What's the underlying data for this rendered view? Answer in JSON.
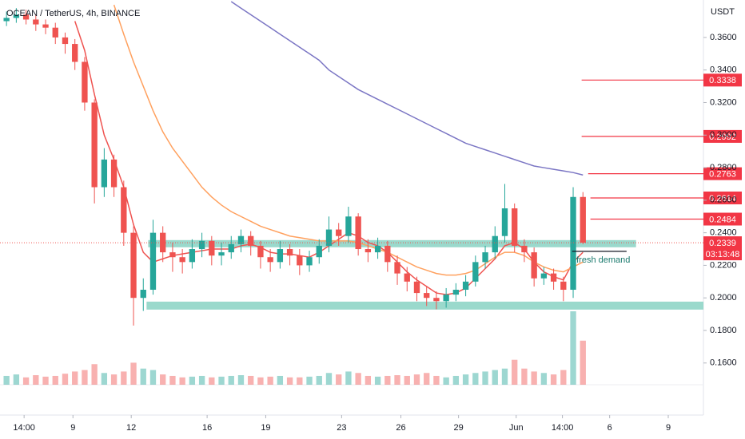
{
  "chart_data": {
    "type": "candlestick",
    "title": "OCEAN / TetherUS, 4h, BINANCE",
    "y_axis_label": "USDT",
    "up_color": "#26a69a",
    "down_color": "#ef5350",
    "xlim": [
      0,
      216
    ],
    "ylim": [
      0.129,
      0.383
    ],
    "xticks": [
      {
        "value": 7.4,
        "label": "14:00"
      },
      {
        "value": 22.4,
        "label": "9"
      },
      {
        "value": 40.3,
        "label": "12"
      },
      {
        "value": 63.6,
        "label": "16"
      },
      {
        "value": 81.6,
        "label": "19"
      },
      {
        "value": 104.9,
        "label": "23"
      },
      {
        "value": 123.1,
        "label": "26"
      },
      {
        "value": 140.8,
        "label": "29"
      },
      {
        "value": 158.5,
        "label": "Jun"
      },
      {
        "value": 172.7,
        "label": "14:00"
      },
      {
        "value": 187.2,
        "label": "6"
      },
      {
        "value": 205.2,
        "label": "9"
      }
    ],
    "yticks": [
      {
        "value": 0.36,
        "label": "0.3600"
      },
      {
        "value": 0.34,
        "label": "0.3400"
      },
      {
        "value": 0.32,
        "label": "0.3200"
      },
      {
        "value": 0.3,
        "label": "0.3000"
      },
      {
        "value": 0.28,
        "label": "0.2800"
      },
      {
        "value": 0.26,
        "label": "0.2600"
      },
      {
        "value": 0.24,
        "label": "0.2400"
      },
      {
        "value": 0.22,
        "label": "0.2200"
      },
      {
        "value": 0.2,
        "label": "0.2000"
      },
      {
        "value": 0.18,
        "label": "0.1800"
      },
      {
        "value": 0.16,
        "label": "0.1600"
      }
    ],
    "x": [
      2,
      5,
      8,
      11,
      14,
      17,
      20,
      23,
      26,
      29,
      32,
      35,
      38,
      41,
      44,
      47,
      50,
      53,
      56,
      59,
      62,
      65,
      68,
      71,
      74,
      77,
      80,
      83,
      86,
      89,
      92,
      95,
      98,
      101,
      104,
      107,
      110,
      113,
      116,
      119,
      122,
      125,
      128,
      131,
      134,
      137,
      140,
      143,
      146,
      149,
      152,
      155,
      158,
      161,
      164,
      167,
      170,
      173,
      176,
      179
    ],
    "open": [
      0.37,
      0.372,
      0.374,
      0.371,
      0.368,
      0.366,
      0.36,
      0.356,
      0.345,
      0.32,
      0.268,
      0.285,
      0.268,
      0.24,
      0.2,
      0.205,
      0.24,
      0.228,
      0.225,
      0.222,
      0.23,
      0.235,
      0.226,
      0.228,
      0.233,
      0.238,
      0.232,
      0.225,
      0.222,
      0.23,
      0.226,
      0.22,
      0.225,
      0.232,
      0.242,
      0.238,
      0.25,
      0.23,
      0.228,
      0.232,
      0.222,
      0.215,
      0.21,
      0.203,
      0.2,
      0.198,
      0.202,
      0.205,
      0.21,
      0.222,
      0.228,
      0.238,
      0.255,
      0.232,
      0.228,
      0.212,
      0.215,
      0.21,
      0.205,
      0.262
    ],
    "high": [
      0.376,
      0.378,
      0.377,
      0.374,
      0.371,
      0.369,
      0.363,
      0.359,
      0.348,
      0.322,
      0.292,
      0.288,
      0.272,
      0.244,
      0.212,
      0.248,
      0.244,
      0.234,
      0.23,
      0.236,
      0.24,
      0.238,
      0.234,
      0.238,
      0.242,
      0.241,
      0.235,
      0.23,
      0.235,
      0.233,
      0.23,
      0.229,
      0.236,
      0.25,
      0.246,
      0.256,
      0.252,
      0.236,
      0.237,
      0.235,
      0.226,
      0.219,
      0.213,
      0.207,
      0.204,
      0.206,
      0.209,
      0.214,
      0.226,
      0.232,
      0.244,
      0.27,
      0.258,
      0.236,
      0.231,
      0.219,
      0.218,
      0.213,
      0.268,
      0.265
    ],
    "low": [
      0.367,
      0.369,
      0.368,
      0.364,
      0.362,
      0.356,
      0.35,
      0.34,
      0.315,
      0.258,
      0.262,
      0.262,
      0.232,
      0.183,
      0.192,
      0.202,
      0.222,
      0.216,
      0.215,
      0.218,
      0.225,
      0.22,
      0.22,
      0.224,
      0.228,
      0.226,
      0.218,
      0.216,
      0.218,
      0.22,
      0.214,
      0.216,
      0.221,
      0.228,
      0.232,
      0.234,
      0.226,
      0.222,
      0.224,
      0.216,
      0.208,
      0.204,
      0.198,
      0.195,
      0.193,
      0.194,
      0.198,
      0.201,
      0.207,
      0.218,
      0.224,
      0.234,
      0.228,
      0.222,
      0.207,
      0.208,
      0.205,
      0.198,
      0.2,
      0.233
    ],
    "close": [
      0.372,
      0.374,
      0.371,
      0.368,
      0.366,
      0.36,
      0.356,
      0.345,
      0.32,
      0.268,
      0.285,
      0.268,
      0.24,
      0.2,
      0.205,
      0.24,
      0.228,
      0.225,
      0.222,
      0.23,
      0.235,
      0.226,
      0.228,
      0.233,
      0.238,
      0.232,
      0.225,
      0.222,
      0.23,
      0.226,
      0.22,
      0.225,
      0.232,
      0.242,
      0.238,
      0.25,
      0.23,
      0.228,
      0.232,
      0.222,
      0.215,
      0.21,
      0.203,
      0.2,
      0.198,
      0.202,
      0.205,
      0.21,
      0.222,
      0.228,
      0.238,
      0.255,
      0.232,
      0.228,
      0.212,
      0.215,
      0.21,
      0.205,
      0.262,
      0.2339
    ],
    "volume": [
      12,
      14,
      10,
      13,
      11,
      12,
      15,
      18,
      20,
      28,
      16,
      14,
      18,
      30,
      22,
      20,
      14,
      12,
      10,
      11,
      12,
      10,
      11,
      12,
      13,
      12,
      10,
      11,
      12,
      10,
      10,
      11,
      12,
      16,
      14,
      18,
      16,
      12,
      11,
      12,
      13,
      12,
      14,
      16,
      12,
      10,
      12,
      14,
      16,
      18,
      20,
      22,
      34,
      22,
      18,
      16,
      14,
      20,
      100,
      60
    ],
    "volume_lim": [
      0,
      100
    ],
    "moving_averages": [
      {
        "color": "#ef5350",
        "values": [
          null,
          null,
          null,
          null,
          null,
          null,
          null,
          0.37,
          0.352,
          0.325,
          0.3,
          0.285,
          0.268,
          0.245,
          0.228,
          0.222,
          0.224,
          0.226,
          0.227,
          0.228,
          0.229,
          0.23,
          0.23,
          0.23,
          0.232,
          0.233,
          0.231,
          0.228,
          0.227,
          0.227,
          0.226,
          0.225,
          0.228,
          0.232,
          0.236,
          0.24,
          0.238,
          0.234,
          0.232,
          0.228,
          0.222,
          0.216,
          0.211,
          0.207,
          0.203,
          0.202,
          0.203,
          0.206,
          0.212,
          0.218,
          0.224,
          0.232,
          0.234,
          0.23,
          0.222,
          0.216,
          0.213,
          0.211,
          0.222,
          0.228
        ]
      },
      {
        "color": "#ffa15f",
        "values": [
          null,
          null,
          null,
          null,
          null,
          null,
          null,
          null,
          null,
          null,
          null,
          0.38,
          0.362,
          0.345,
          0.33,
          0.315,
          0.302,
          0.292,
          0.284,
          0.276,
          0.268,
          0.262,
          0.257,
          0.253,
          0.25,
          0.247,
          0.244,
          0.242,
          0.24,
          0.238,
          0.237,
          0.236,
          0.235,
          0.235,
          0.235,
          0.235,
          0.234,
          0.232,
          0.23,
          0.228,
          0.225,
          0.222,
          0.219,
          0.217,
          0.215,
          0.214,
          0.214,
          0.215,
          0.217,
          0.221,
          0.225,
          0.228,
          0.228,
          0.226,
          0.222,
          0.219,
          0.217,
          0.216,
          0.219,
          0.222
        ]
      },
      {
        "color": "#7b76c4",
        "values": [
          null,
          null,
          null,
          null,
          null,
          null,
          null,
          null,
          null,
          null,
          null,
          null,
          null,
          null,
          null,
          null,
          null,
          null,
          null,
          null,
          null,
          null,
          null,
          0.382,
          0.378,
          0.374,
          0.37,
          0.366,
          0.362,
          0.358,
          0.354,
          0.35,
          0.346,
          0.34,
          0.336,
          0.332,
          0.328,
          0.325,
          0.322,
          0.319,
          0.316,
          0.313,
          0.31,
          0.307,
          0.304,
          0.301,
          0.298,
          0.295,
          0.293,
          0.291,
          0.289,
          0.287,
          0.285,
          0.283,
          0.281,
          0.28,
          0.279,
          0.278,
          0.277,
          0.2755
        ]
      }
    ],
    "zones": [
      {
        "from": 0.2311,
        "to": 0.2355,
        "x": [
          45.5,
          195.3
        ]
      },
      {
        "from": 0.1928,
        "to": 0.1977,
        "x": [
          45.0,
          216
        ]
      }
    ],
    "price_lines": [
      {
        "value": 0.3338,
        "x": 178.6
      },
      {
        "value": 0.2992,
        "x": 178.6
      },
      {
        "value": 0.2763,
        "x": 180.6
      },
      {
        "value": 0.2614,
        "x": 181.3
      },
      {
        "value": 0.2484,
        "x": 181.3
      }
    ],
    "demand_line": {
      "value": 0.2286,
      "x": [
        175.7,
        192.4
      ]
    },
    "annotation": {
      "text": "fresh demand",
      "x": 177,
      "y": 0.2232
    },
    "last_price": 0.2339,
    "countdown": "03:13:48"
  }
}
